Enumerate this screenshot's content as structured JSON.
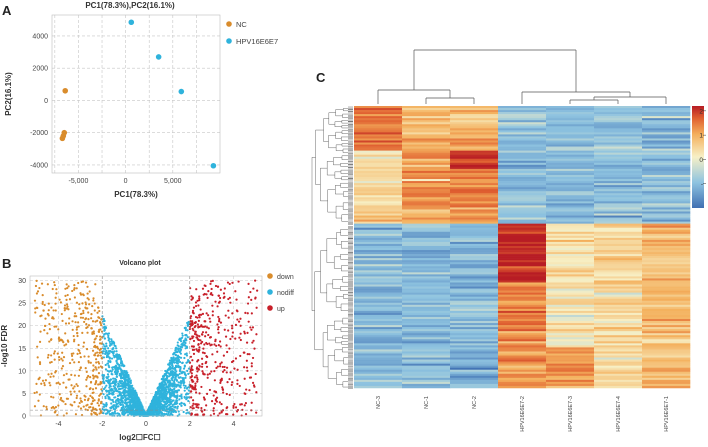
{
  "figure": {
    "panels": [
      {
        "letter": "A"
      },
      {
        "letter": "B"
      },
      {
        "letter": "C"
      }
    ]
  },
  "chart_data": [
    {
      "panel": "A",
      "type": "scatter",
      "title": "PC1(78.3%),PC2(16.1%)",
      "xlabel": "PC1(78.3%)",
      "ylabel": "PC2(16.1%)",
      "xlim": [
        -7800,
        10000
      ],
      "ylim": [
        -4500,
        5300
      ],
      "xticks": [
        {
          "value": -5000,
          "label": "-5,000"
        },
        {
          "value": 0,
          "label": "0"
        },
        {
          "value": 5000,
          "label": "5,000"
        }
      ],
      "yticks": [
        {
          "value": 4000,
          "label": "4000"
        },
        {
          "value": 2000,
          "label": "2000"
        },
        {
          "value": 0,
          "label": "0"
        },
        {
          "value": -2000,
          "label": "-2000"
        },
        {
          "value": -4000,
          "label": "-4000"
        }
      ],
      "grid": true,
      "legend_position": "right",
      "series": [
        {
          "name": "NC",
          "color": "#d98c2c",
          "points": [
            [
              -6400,
              600
            ],
            [
              -6500,
              -2000
            ],
            [
              -6600,
              -2200
            ],
            [
              -6700,
              -2350
            ]
          ]
        },
        {
          "name": "HPV16E6E7",
          "color": "#2fb3dc",
          "points": [
            [
              600,
              4850
            ],
            [
              3500,
              2700
            ],
            [
              5900,
              550
            ],
            [
              9300,
              -4050
            ]
          ]
        }
      ]
    },
    {
      "panel": "B",
      "type": "scatter",
      "title": "Volcano plot",
      "xlabel": "log2☐FC☐",
      "ylabel": "-log10  FDR",
      "xlim": [
        -5.3,
        5.3
      ],
      "ylim": [
        0,
        31
      ],
      "xticks": [
        -4,
        -2,
        0,
        2,
        4
      ],
      "yticks": [
        0,
        5,
        10,
        15,
        20,
        25,
        30
      ],
      "threshold_lines": {
        "x": [
          -2,
          2
        ],
        "y": [
          1.3
        ]
      },
      "grid": true,
      "legend_position": "right",
      "series": [
        {
          "name": "down",
          "color": "#d98c2c",
          "rule": "log2FC < -2"
        },
        {
          "name": "nodiff",
          "color": "#2fb3dc",
          "rule": "-2 <= log2FC <= 2"
        },
        {
          "name": "up",
          "color": "#c8202a",
          "rule": "log2FC > 2"
        }
      ]
    },
    {
      "panel": "C",
      "type": "heatmap",
      "columns": [
        "NC-3",
        "NC-1",
        "NC-2",
        "HPV16E6E7-2",
        "HPV16E6E7-3",
        "HPV16E6E7-4",
        "HPV16E6E7-1"
      ],
      "column_groups": [
        {
          "name": "NC",
          "columns": [
            "NC-3",
            "NC-1",
            "NC-2"
          ]
        },
        {
          "name": "HPV16E6E7",
          "columns": [
            "HPV16E6E7-2",
            "HPV16E6E7-3",
            "HPV16E6E7-4",
            "HPV16E6E7-1"
          ]
        }
      ],
      "colorbar": {
        "min": -2,
        "max": 2.2,
        "ticks": [
          {
            "value": 2,
            "label": "2"
          },
          {
            "value": 1,
            "label": "1"
          },
          {
            "value": 0,
            "label": "0"
          },
          {
            "value": -1,
            "label": "-"
          }
        ]
      },
      "colors": [
        "#3f6fb2",
        "#8ec3e0",
        "#f7f0c6",
        "#f4b05d",
        "#e06030",
        "#b71c24"
      ],
      "row_blocks": [
        {
          "fraction": 0.16,
          "values": [
            1.4,
            0.8,
            0.6,
            -1.0,
            -1.1,
            -1.0,
            -1.05
          ]
        },
        {
          "fraction": 0.2,
          "values": [
            0.2,
            1.1,
            1.3,
            -1.05,
            -1.1,
            -1.0,
            -1.0
          ]
        },
        {
          "fraction": 0.06,
          "values": [
            0.6,
            0.9,
            0.9,
            -1.0,
            -1.05,
            -1.0,
            -1.0
          ]
        },
        {
          "fraction": 0.58,
          "values": [
            -1.1,
            -1.1,
            -1.1,
            1.2,
            0.2,
            0.4,
            0.7
          ]
        }
      ]
    }
  ]
}
